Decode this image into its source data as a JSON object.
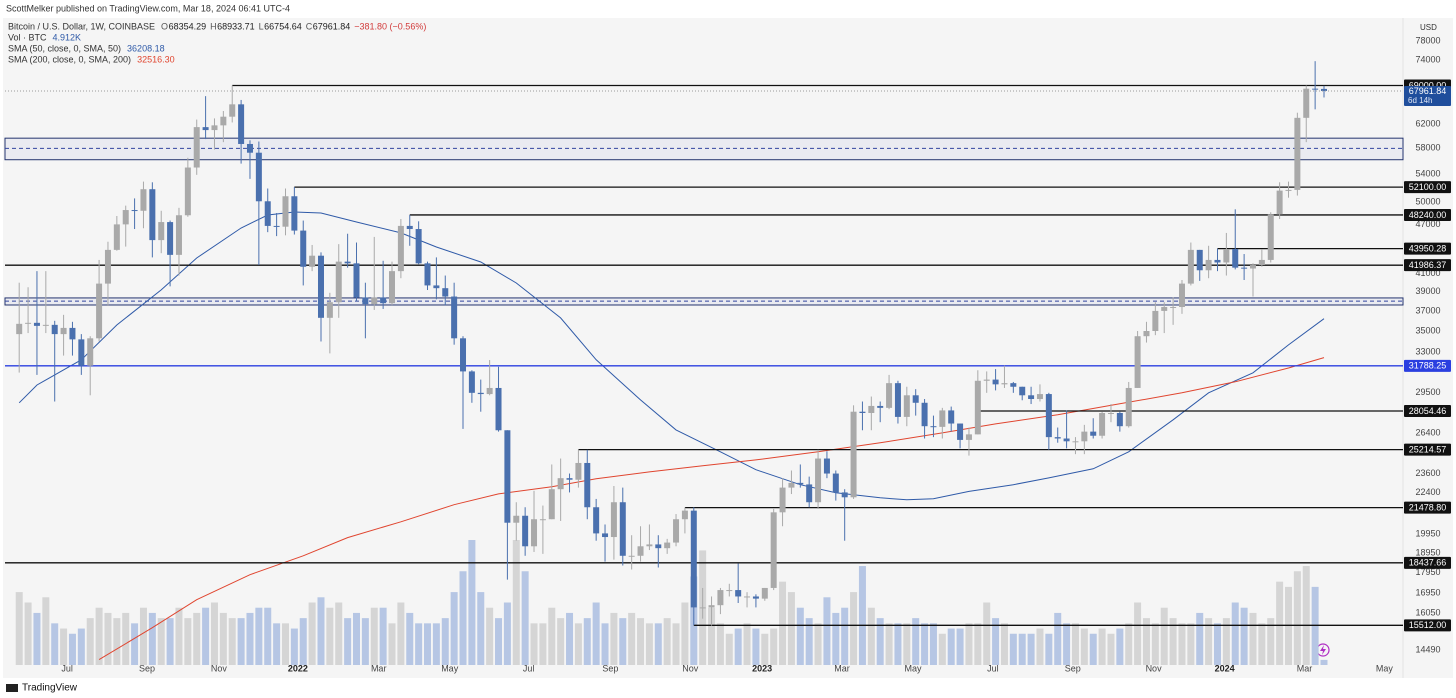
{
  "chart_data": {
    "type": "candlestick",
    "header": {
      "published": "ScottMelker published on TradingView.com, Mar 18, 2024 06:41 UTC-4",
      "symbol": "Bitcoin / U.S. Dollar, 1W, COINBASE",
      "ohlc_labels": [
        "O",
        "H",
        "L",
        "C"
      ],
      "change": "−381.80 (−0.56%)",
      "volume_label": "Vol · BTC",
      "volume_value_label": "4.912K",
      "countdown": "6d 14h",
      "currency": "USD",
      "footer": "TradingView"
    },
    "log_scale": true,
    "up_color": "#a9a9a9",
    "down_color": "#4a70ae",
    "volume_up_color": "#d5d5d5",
    "volume_down_color": "#b6c6e4",
    "candles": [
      [
        34700,
        40000,
        31200,
        35700
      ],
      [
        35700,
        39500,
        34800,
        35800
      ],
      [
        35800,
        41300,
        31000,
        35500
      ],
      [
        35500,
        41300,
        34800,
        35600
      ],
      [
        35600,
        36000,
        28800,
        34700
      ],
      [
        34700,
        36600,
        32700,
        35300
      ],
      [
        35300,
        35900,
        32700,
        34200
      ],
      [
        34200,
        34700,
        31000,
        31800
      ],
      [
        31800,
        34500,
        29300,
        34300
      ],
      [
        34300,
        42600,
        34000,
        39900
      ],
      [
        39900,
        44800,
        37500,
        43800
      ],
      [
        43800,
        48100,
        43700,
        47000
      ],
      [
        47000,
        49500,
        44200,
        48900
      ],
      [
        48900,
        50500,
        46400,
        48800
      ],
      [
        48800,
        52900,
        46500,
        51800
      ],
      [
        51800,
        52800,
        42900,
        45000
      ],
      [
        45000,
        48800,
        43400,
        47300
      ],
      [
        47300,
        47500,
        39600,
        43200
      ],
      [
        43200,
        49200,
        40800,
        48200
      ],
      [
        48200,
        56500,
        48000,
        55000
      ],
      [
        55000,
        62800,
        53900,
        61500
      ],
      [
        61500,
        67000,
        59500,
        61000
      ],
      [
        61000,
        63000,
        57800,
        61800
      ],
      [
        61800,
        64300,
        59000,
        63300
      ],
      [
        63300,
        69000,
        62300,
        65500
      ],
      [
        65500,
        66300,
        55600,
        58700
      ],
      [
        58700,
        59300,
        53300,
        57300
      ],
      [
        57300,
        59100,
        42000,
        50100
      ],
      [
        50100,
        51900,
        46000,
        46800
      ],
      [
        46800,
        48500,
        45500,
        46700
      ],
      [
        46700,
        51900,
        45600,
        50800
      ],
      [
        50800,
        52100,
        45700,
        46200
      ],
      [
        46200,
        47500,
        39700,
        41800
      ],
      [
        41800,
        44400,
        41300,
        43100
      ],
      [
        43100,
        43500,
        34000,
        36300
      ],
      [
        36300,
        38900,
        32900,
        37900
      ],
      [
        37900,
        44500,
        36300,
        42400
      ],
      [
        42400,
        45800,
        41700,
        42200
      ],
      [
        42200,
        44700,
        38000,
        38400
      ],
      [
        38400,
        40000,
        34300,
        37700
      ],
      [
        37700,
        45400,
        37100,
        38400
      ],
      [
        38400,
        42500,
        37200,
        37800
      ],
      [
        37800,
        42400,
        37600,
        41300
      ],
      [
        41300,
        47700,
        40500,
        46800
      ],
      [
        46800,
        48240,
        44300,
        46400
      ],
      [
        46400,
        47400,
        42100,
        42200
      ],
      [
        42200,
        42400,
        39200,
        39700
      ],
      [
        39700,
        42900,
        38200,
        39400
      ],
      [
        39400,
        40800,
        37600,
        38500
      ],
      [
        38500,
        40000,
        33700,
        34300
      ],
      [
        34300,
        34500,
        26700,
        31300
      ],
      [
        31300,
        31400,
        28700,
        29500
      ],
      [
        29500,
        30600,
        28000,
        29400
      ],
      [
        29400,
        32300,
        29300,
        29900
      ],
      [
        29900,
        31700,
        26500,
        26600
      ],
      [
        26600,
        26600,
        17600,
        20600
      ],
      [
        20600,
        21800,
        19600,
        21000
      ],
      [
        21000,
        21500,
        18800,
        19300
      ],
      [
        19300,
        22500,
        19000,
        20800
      ],
      [
        20800,
        21600,
        18900,
        20800
      ],
      [
        20800,
        24200,
        20800,
        22600
      ],
      [
        22600,
        24600,
        20700,
        23300
      ],
      [
        23300,
        23600,
        22400,
        23200
      ],
      [
        23200,
        25214.57,
        22700,
        24300
      ],
      [
        24300,
        25200,
        20800,
        21500
      ],
      [
        21500,
        22000,
        19600,
        20000
      ],
      [
        20000,
        20500,
        18500,
        19800
      ],
      [
        19800,
        22800,
        18600,
        21800
      ],
      [
        21800,
        22700,
        18300,
        18800
      ],
      [
        18800,
        19900,
        18100,
        18800
      ],
      [
        18800,
        20400,
        18500,
        19300
      ],
      [
        19300,
        20500,
        19100,
        19400
      ],
      [
        19400,
        19900,
        18200,
        19200
      ],
      [
        19200,
        19700,
        18900,
        19500
      ],
      [
        19500,
        21100,
        19300,
        20800
      ],
      [
        20800,
        21478.8,
        20000,
        21300
      ],
      [
        21300,
        21500,
        15512,
        16300
      ],
      [
        16300,
        17200,
        15800,
        16300
      ],
      [
        16300,
        16800,
        15500,
        16400
      ],
      [
        16400,
        17200,
        16000,
        17100
      ],
      [
        17100,
        17400,
        16800,
        17100
      ],
      [
        17100,
        18400,
        16500,
        16800
      ],
      [
        16800,
        17000,
        16300,
        16800
      ],
      [
        16800,
        16900,
        16300,
        16700
      ],
      [
        16700,
        17200,
        16600,
        17200
      ],
      [
        17200,
        21400,
        17100,
        21200
      ],
      [
        21200,
        23300,
        20400,
        22700
      ],
      [
        22700,
        23800,
        22300,
        23000
      ],
      [
        23000,
        24200,
        22700,
        22900
      ],
      [
        22900,
        23400,
        21500,
        21800
      ],
      [
        21800,
        25200,
        21400,
        24600
      ],
      [
        24600,
        25100,
        23300,
        23600
      ],
      [
        23600,
        23800,
        21900,
        22400
      ],
      [
        22400,
        22600,
        19600,
        22100
      ],
      [
        22100,
        28500,
        22000,
        28000
      ],
      [
        28000,
        28800,
        26600,
        27900
      ],
      [
        27900,
        29200,
        26600,
        28450
      ],
      [
        28450,
        28800,
        27200,
        28300
      ],
      [
        28300,
        31000,
        28200,
        30300
      ],
      [
        30300,
        30500,
        27100,
        27600
      ],
      [
        27600,
        30000,
        26900,
        29300
      ],
      [
        29300,
        29800,
        27700,
        28700
      ],
      [
        28700,
        29000,
        26000,
        26900
      ],
      [
        26900,
        27700,
        26100,
        26850
      ],
      [
        26850,
        28300,
        26000,
        28100
      ],
      [
        28100,
        28400,
        26500,
        27100
      ],
      [
        27100,
        27100,
        25300,
        25900
      ],
      [
        25900,
        26800,
        24800,
        26300
      ],
      [
        26300,
        31400,
        26300,
        30500
      ],
      [
        30500,
        31300,
        29500,
        30600
      ],
      [
        30600,
        31500,
        29700,
        30200
      ],
      [
        30200,
        31800,
        29900,
        30300
      ],
      [
        30300,
        30400,
        29500,
        30000
      ],
      [
        30000,
        30000,
        28900,
        29300
      ],
      [
        29300,
        30000,
        28600,
        29000
      ],
      [
        29000,
        30200,
        28800,
        29400
      ],
      [
        29400,
        29500,
        25200,
        26100
      ],
      [
        26100,
        26800,
        25700,
        26000
      ],
      [
        26000,
        28100,
        25300,
        25800
      ],
      [
        25800,
        26100,
        24900,
        25800
      ],
      [
        25800,
        27000,
        24900,
        26500
      ],
      [
        26500,
        27500,
        26000,
        26200
      ],
      [
        26200,
        28000,
        26000,
        27900
      ],
      [
        27900,
        28600,
        27200,
        27900
      ],
      [
        27900,
        28000,
        26500,
        26900
      ],
      [
        26900,
        30400,
        26800,
        29900
      ],
      [
        29900,
        35000,
        29900,
        34500
      ],
      [
        34500,
        35900,
        33900,
        35000
      ],
      [
        35000,
        37900,
        34600,
        37000
      ],
      [
        37000,
        37900,
        34800,
        37400
      ],
      [
        37400,
        38400,
        35600,
        37400
      ],
      [
        37400,
        40300,
        36700,
        39900
      ],
      [
        39900,
        44700,
        39700,
        43800
      ],
      [
        43800,
        43800,
        40200,
        41400
      ],
      [
        41400,
        44300,
        40500,
        42600
      ],
      [
        42600,
        43950.28,
        41300,
        42300
      ],
      [
        42300,
        45900,
        40800,
        43900
      ],
      [
        43900,
        49000,
        41500,
        41700
      ],
      [
        41700,
        43300,
        40300,
        41600
      ],
      [
        41600,
        42200,
        38500,
        42000
      ],
      [
        42000,
        43900,
        41800,
        42600
      ],
      [
        42600,
        48600,
        42300,
        48300
      ],
      [
        48300,
        52800,
        47700,
        51600
      ],
      [
        51600,
        52900,
        50600,
        51700
      ],
      [
        51700,
        64000,
        50900,
        63100
      ],
      [
        63100,
        69000,
        59000,
        68400
      ],
      [
        68400,
        73800,
        64600,
        68343.64
      ],
      [
        68354.29,
        68933.71,
        66754.64,
        67961.84
      ]
    ],
    "volume": [
      70,
      60,
      50,
      65,
      40,
      35,
      30,
      35,
      45,
      55,
      50,
      45,
      50,
      40,
      55,
      50,
      45,
      45,
      55,
      45,
      50,
      55,
      60,
      50,
      45,
      45,
      50,
      55,
      55,
      40,
      40,
      35,
      45,
      60,
      65,
      55,
      60,
      45,
      50,
      45,
      55,
      55,
      40,
      60,
      50,
      40,
      40,
      40,
      45,
      70,
      90,
      120,
      70,
      55,
      45,
      60,
      120,
      90,
      40,
      40,
      55,
      45,
      50,
      40,
      45,
      60,
      40,
      50,
      45,
      50,
      45,
      40,
      40,
      45,
      40,
      60,
      85,
      110,
      55,
      40,
      30,
      35,
      40,
      35,
      30,
      35,
      80,
      70,
      55,
      45,
      40,
      65,
      50,
      55,
      70,
      95,
      55,
      45,
      40,
      40,
      40,
      45,
      40,
      40,
      30,
      35,
      35,
      40,
      40,
      60,
      45,
      40,
      30,
      30,
      30,
      35,
      30,
      50,
      40,
      40,
      35,
      30,
      35,
      30,
      35,
      40,
      60,
      45,
      40,
      55,
      45,
      40,
      40,
      50,
      45,
      40,
      45,
      60,
      55,
      50,
      40,
      45,
      80,
      75,
      90,
      95,
      75,
      4.912
    ],
    "sma": [
      {
        "name": "SMA (50, close, 0, SMA, 50)",
        "color": "#2f5aa8",
        "x": [
          0,
          2,
          7,
          11,
          16,
          20,
          25,
          28,
          31,
          34,
          38,
          43,
          47,
          52,
          56,
          61,
          65,
          70,
          74,
          79,
          83,
          88,
          92,
          97,
          100,
          103,
          107,
          112,
          116,
          121,
          125,
          130,
          134,
          139,
          143,
          147
        ],
        "values": [
          28700,
          30150,
          32320,
          35590,
          39210,
          42830,
          46530,
          48240,
          48630,
          48500,
          47310,
          45900,
          44150,
          42360,
          39970,
          36290,
          32320,
          28930,
          26630,
          25060,
          23850,
          22880,
          22380,
          22070,
          21950,
          22010,
          22460,
          22880,
          23320,
          23910,
          25060,
          27380,
          29500,
          31180,
          33680,
          36208.18
        ],
        "value_label": "36208.18"
      },
      {
        "name": "SMA (200, close, 0, SMA, 200)",
        "color": "#e0452f",
        "x": [
          9,
          15,
          20,
          26,
          32,
          37,
          43,
          49,
          54,
          60,
          65,
          71,
          77,
          83,
          90,
          97,
          104,
          110,
          117,
          124,
          131,
          137,
          143,
          147
        ],
        "values": [
          14110,
          15410,
          16650,
          17840,
          18800,
          19770,
          20650,
          21650,
          22310,
          22750,
          23260,
          23710,
          24110,
          24510,
          25060,
          25690,
          26410,
          27070,
          27760,
          28620,
          29500,
          30410,
          31600,
          32516.3
        ],
        "value_label": "32516.30"
      }
    ],
    "levels": [
      {
        "value": 69000,
        "label": "69000.00",
        "start": 24,
        "color": "#111111"
      },
      {
        "value": 52100,
        "label": "52100.00",
        "start": 31,
        "color": "#111111"
      },
      {
        "value": 48240,
        "label": "48240.00",
        "start": 44,
        "color": "#111111"
      },
      {
        "value": 43950.28,
        "label": "43950.28",
        "start": 135,
        "color": "#111111"
      },
      {
        "value": 41986.37,
        "label": "41986.37",
        "color": "#111111"
      },
      {
        "value": 31788.25,
        "label": "31788.25",
        "color": "#2b3fe0"
      },
      {
        "value": 28054.46,
        "label": "28054.46",
        "start": 108,
        "color": "#111111"
      },
      {
        "value": 25214.57,
        "label": "25214.57",
        "start": 63,
        "color": "#111111"
      },
      {
        "value": 21478.8,
        "label": "21478.80",
        "start": 75,
        "color": "#111111"
      },
      {
        "value": 18437.66,
        "label": "18437.66",
        "color": "#111111"
      },
      {
        "value": 15512,
        "label": "15512.00",
        "start": 76,
        "color": "#111111"
      }
    ],
    "zones": [
      {
        "top": 59650,
        "bottom": 56200,
        "mid": 58000
      },
      {
        "top": 38350,
        "bottom": 37610,
        "mid": 38020
      }
    ],
    "ylim": [
      13900,
      82700
    ],
    "yticks": [
      78000,
      74000,
      62000,
      58000,
      54000,
      50000,
      47000,
      41000,
      39000,
      37000,
      35000,
      33000,
      29500,
      26400,
      23600,
      22400,
      19950,
      18950,
      17950,
      16950,
      16050,
      14490
    ],
    "xlim": [
      -1.6,
      155.9
    ],
    "xticks": [
      {
        "value": 5.4,
        "label": "Jul"
      },
      {
        "value": 14.4,
        "label": "Sep"
      },
      {
        "value": 22.5,
        "label": "Nov"
      },
      {
        "value": 31.4,
        "label": "2022"
      },
      {
        "value": 40.5,
        "label": "Mar"
      },
      {
        "value": 48.5,
        "label": "May"
      },
      {
        "value": 57.4,
        "label": "Jul"
      },
      {
        "value": 66.6,
        "label": "Sep"
      },
      {
        "value": 75.6,
        "label": "Nov"
      },
      {
        "value": 83.7,
        "label": "2023"
      },
      {
        "value": 92.7,
        "label": "Mar"
      },
      {
        "value": 100.7,
        "label": "May"
      },
      {
        "value": 109.7,
        "label": "Jul"
      },
      {
        "value": 118.7,
        "label": "Sep"
      },
      {
        "value": 127.8,
        "label": "Nov"
      },
      {
        "value": 135.8,
        "label": "2024"
      },
      {
        "value": 144.8,
        "label": "Mar"
      },
      {
        "value": 153.8,
        "label": "May"
      }
    ]
  }
}
